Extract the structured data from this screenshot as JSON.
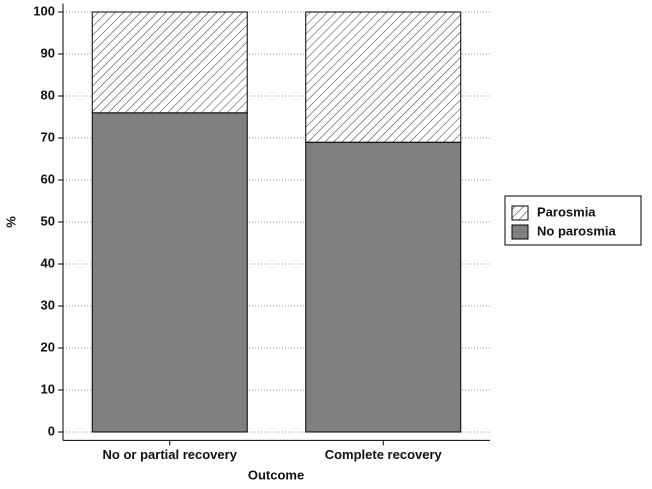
{
  "chart_data": {
    "type": "stacked-bar",
    "categories": [
      "No or partial recovery",
      "Complete recovery"
    ],
    "series": [
      {
        "name": "No parosmia",
        "color": "#808080",
        "values": [
          76,
          69
        ]
      },
      {
        "name": "Parosmia",
        "color": "#ffffff",
        "pattern": "hatch",
        "values": [
          24,
          31
        ]
      }
    ],
    "xlabel": "Outcome",
    "ylabel": "%",
    "ylim": [
      -2,
      102
    ],
    "yticks": [
      0,
      10,
      20,
      30,
      40,
      50,
      60,
      70,
      80,
      90,
      100
    ],
    "grid": true,
    "legend": "right"
  }
}
